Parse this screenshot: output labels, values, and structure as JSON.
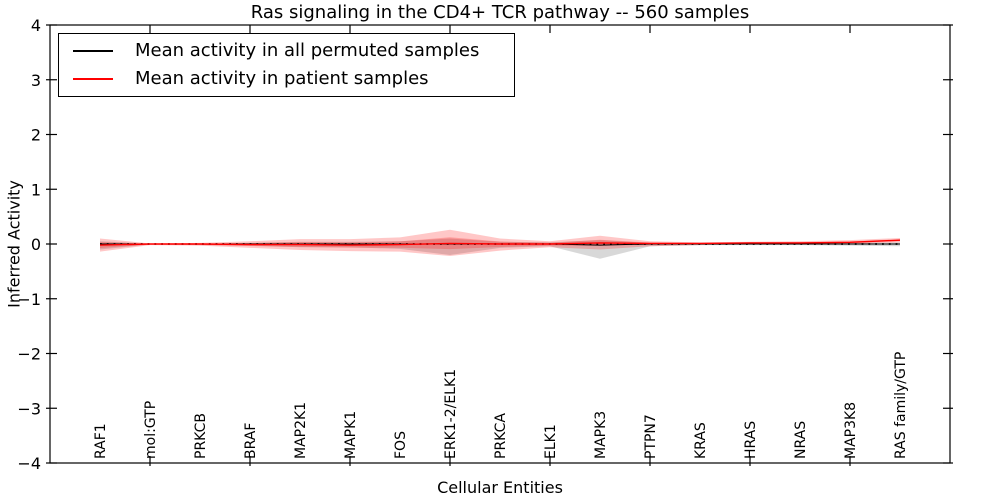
{
  "chart_data": {
    "type": "line",
    "title": "Ras signaling in the CD4+ TCR pathway -- 560 samples",
    "xlabel": "Cellular Entities",
    "ylabel": "Inferred Activity",
    "ylim": [
      -4,
      4
    ],
    "yticks": [
      "-4",
      "-3",
      "-2",
      "-1",
      "0",
      "1",
      "2",
      "3",
      "4"
    ],
    "xtick_positions": [
      1,
      3,
      5,
      7,
      9,
      11,
      13,
      15
    ],
    "grid": false,
    "categories": [
      "RAF1",
      "mol:GTP",
      "PRKCB",
      "BRAF",
      "MAP2K1",
      "MAPK1",
      "FOS",
      "ERK1-2/ELK1",
      "PRKCA",
      "ELK1",
      "MAPK3",
      "PTPN7",
      "KRAS",
      "HRAS",
      "NRAS",
      "MAP3K8",
      "RAS family/GTP"
    ],
    "legend": {
      "position": "upper left",
      "entries": [
        {
          "label": "Mean activity in all permuted samples",
          "color": "#000000"
        },
        {
          "label": "Mean activity in patient samples",
          "color": "#ff0000"
        }
      ]
    },
    "series": [
      {
        "name": "Mean activity in all permuted samples",
        "color": "#000000",
        "band_color": "rgba(115,115,115,0.28)",
        "mean": [
          0,
          0,
          0,
          0,
          0,
          0,
          0,
          0,
          0,
          0,
          -0.02,
          0,
          0,
          0,
          0,
          0,
          0
        ],
        "band_upper": [
          0.05,
          0.01,
          0.01,
          0.02,
          0.04,
          0.04,
          0.05,
          0.1,
          0.04,
          0.03,
          0.07,
          0.02,
          0.02,
          0.02,
          0.02,
          0.02,
          0.03
        ],
        "band_lower": [
          -0.1,
          -0.01,
          -0.02,
          -0.03,
          -0.06,
          -0.06,
          -0.09,
          -0.2,
          -0.07,
          -0.04,
          -0.27,
          -0.04,
          -0.02,
          -0.02,
          -0.02,
          -0.03,
          -0.04
        ]
      },
      {
        "name": "Mean activity in patient samples",
        "color": "#ff0000",
        "band_color": "rgba(255,0,0,0.22)",
        "mean": [
          -0.02,
          0,
          0,
          -0.01,
          -0.01,
          -0.02,
          -0.01,
          0.01,
          0,
          0,
          0.02,
          0.01,
          0.01,
          0.02,
          0.02,
          0.03,
          0.07
        ],
        "band_upper": [
          0.1,
          0.01,
          0.02,
          0.05,
          0.09,
          0.09,
          0.12,
          0.26,
          0.1,
          0.05,
          0.15,
          0.05,
          0.03,
          0.04,
          0.05,
          0.07,
          0.11
        ],
        "band_lower": [
          -0.14,
          -0.02,
          -0.03,
          -0.07,
          -0.11,
          -0.13,
          -0.14,
          -0.22,
          -0.12,
          -0.06,
          -0.1,
          -0.04,
          -0.02,
          -0.01,
          -0.01,
          0.0,
          0.03
        ]
      }
    ],
    "zero_line": {
      "y": 0,
      "style": "dotted",
      "color": "#000000"
    }
  }
}
